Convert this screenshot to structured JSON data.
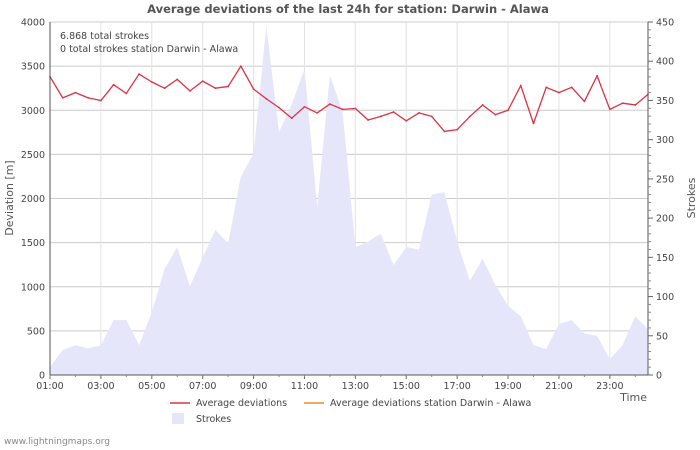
{
  "chart_data": {
    "type": "line",
    "title": "Average deviations of the last 24h for station: Darwin - Alawa",
    "info": [
      "6.868 total strokes",
      "0 total strokes station Darwin - Alawa"
    ],
    "xlabel": "Time",
    "ylabel": "Deviation  [m]",
    "y2label": "Strokes",
    "ylim": [
      0,
      4000
    ],
    "y2lim": [
      0,
      450
    ],
    "yticks": [
      0,
      500,
      1000,
      1500,
      2000,
      2500,
      3000,
      3500,
      4000
    ],
    "y2ticks": [
      0,
      50,
      100,
      150,
      200,
      250,
      300,
      350,
      400,
      450
    ],
    "x_start_hour": 1,
    "x_end_hour": 24.5,
    "xticks": [
      {
        "hour": 1,
        "label": "01:00"
      },
      {
        "hour": 3,
        "label": "03:00"
      },
      {
        "hour": 5,
        "label": "05:00"
      },
      {
        "hour": 7,
        "label": "07:00"
      },
      {
        "hour": 9,
        "label": "09:00"
      },
      {
        "hour": 11,
        "label": "11:00"
      },
      {
        "hour": 13,
        "label": "13:00"
      },
      {
        "hour": 15,
        "label": "15:00"
      },
      {
        "hour": 17,
        "label": "17:00"
      },
      {
        "hour": 19,
        "label": "19:00"
      },
      {
        "hour": 21,
        "label": "21:00"
      },
      {
        "hour": 23,
        "label": "23:00"
      }
    ],
    "x_hours": [
      1.0,
      1.5,
      2.0,
      2.5,
      3.0,
      3.5,
      4.0,
      4.5,
      5.0,
      5.5,
      6.0,
      6.5,
      7.0,
      7.5,
      8.0,
      8.5,
      9.0,
      9.5,
      10.0,
      10.5,
      11.0,
      11.5,
      12.0,
      12.5,
      13.0,
      13.5,
      14.0,
      14.5,
      15.0,
      15.5,
      16.0,
      16.5,
      17.0,
      17.5,
      18.0,
      18.5,
      19.0,
      19.5,
      20.0,
      20.5,
      21.0,
      21.5,
      22.0,
      22.5,
      23.0,
      23.5,
      24.0,
      24.5
    ],
    "series": [
      {
        "name": "Average deviations",
        "color": "#dd3344",
        "axis": "left",
        "values": [
          3380,
          3140,
          3200,
          3140,
          3110,
          3290,
          3190,
          3410,
          3320,
          3250,
          3350,
          3220,
          3330,
          3250,
          3270,
          3500,
          3240,
          3130,
          3030,
          2910,
          3040,
          2970,
          3070,
          3010,
          3020,
          2890,
          2930,
          2980,
          2880,
          2970,
          2930,
          2760,
          2780,
          2930,
          3060,
          2950,
          3000,
          3280,
          2850,
          3260,
          3200,
          3260,
          3100,
          3390,
          3010,
          3080,
          3060,
          3180
        ]
      },
      {
        "name": "Average deviations station Darwin - Alawa",
        "color": "#ee8833",
        "axis": "left",
        "values": []
      },
      {
        "name": "Strokes",
        "color": "#e6e6fa",
        "axis": "right",
        "type": "area",
        "values": [
          10,
          32,
          38,
          34,
          38,
          70,
          70,
          38,
          80,
          135,
          163,
          113,
          150,
          185,
          168,
          253,
          282,
          445,
          310,
          345,
          390,
          215,
          382,
          335,
          163,
          170,
          180,
          140,
          163,
          160,
          230,
          233,
          170,
          120,
          148,
          115,
          88,
          75,
          38,
          33,
          65,
          70,
          53,
          50,
          20,
          38,
          75,
          58
        ]
      }
    ],
    "legend": {
      "position": "bottom"
    }
  },
  "footer": "www.lightningmaps.org"
}
